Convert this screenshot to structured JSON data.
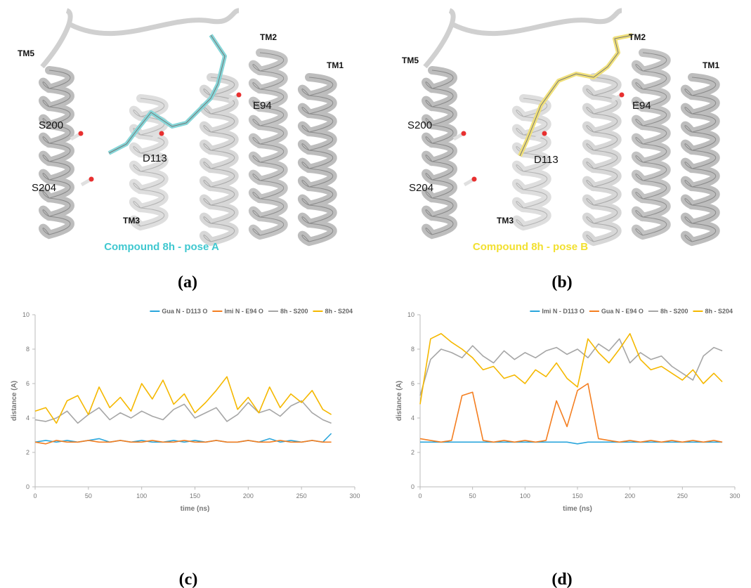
{
  "panels": [
    {
      "label": "(a)",
      "caption": "Compound 8h - pose A",
      "residues": [
        "TM5",
        "S200",
        "S204",
        "TM3",
        "D113",
        "TM2",
        "E94",
        "TM1"
      ]
    },
    {
      "label": "(b)",
      "caption": "Compound 8h - pose B",
      "residues": [
        "TM5",
        "S200",
        "S204",
        "TM3",
        "D113",
        "TM2",
        "E94",
        "TM1"
      ]
    }
  ],
  "chart_labels": [
    "(c)",
    "(d)"
  ],
  "chart_data": [
    {
      "type": "line",
      "xlabel": "time (ns)",
      "ylabel": "distance (A)",
      "legend": "top",
      "xlim": [
        0,
        300
      ],
      "xticks": [
        0,
        50,
        100,
        150,
        200,
        250,
        300
      ],
      "ylim": [
        0,
        10
      ],
      "yticks": [
        0,
        2,
        4,
        6,
        8,
        10
      ],
      "x": [
        0,
        10,
        20,
        30,
        40,
        50,
        60,
        70,
        80,
        90,
        100,
        110,
        120,
        130,
        140,
        150,
        160,
        170,
        180,
        190,
        200,
        210,
        220,
        230,
        240,
        250,
        260,
        270,
        278
      ],
      "series": [
        {
          "name": "Gua N - D113 O",
          "color": "#2aa6dc",
          "values": [
            2.6,
            2.7,
            2.6,
            2.7,
            2.6,
            2.7,
            2.8,
            2.6,
            2.7,
            2.6,
            2.7,
            2.6,
            2.6,
            2.7,
            2.6,
            2.7,
            2.6,
            2.7,
            2.6,
            2.6,
            2.7,
            2.6,
            2.8,
            2.6,
            2.7,
            2.6,
            2.7,
            2.6,
            3.1
          ]
        },
        {
          "name": "Imi N - E94 O",
          "color": "#f47e20",
          "values": [
            2.6,
            2.5,
            2.7,
            2.6,
            2.6,
            2.7,
            2.6,
            2.6,
            2.7,
            2.6,
            2.6,
            2.7,
            2.6,
            2.6,
            2.7,
            2.6,
            2.6,
            2.7,
            2.6,
            2.6,
            2.7,
            2.6,
            2.6,
            2.7,
            2.6,
            2.6,
            2.7,
            2.6,
            2.6
          ]
        },
        {
          "name": "8h - S200",
          "color": "#a6a6a6",
          "values": [
            3.9,
            3.8,
            4.0,
            4.4,
            3.7,
            4.2,
            4.6,
            3.9,
            4.3,
            4.0,
            4.4,
            4.1,
            3.9,
            4.5,
            4.8,
            4.0,
            4.3,
            4.6,
            3.8,
            4.2,
            4.9,
            4.3,
            4.5,
            4.1,
            4.7,
            5.0,
            4.3,
            3.9,
            3.7
          ]
        },
        {
          "name": "8h - S204",
          "color": "#f5b800",
          "values": [
            4.4,
            4.6,
            3.7,
            5.0,
            5.3,
            4.2,
            5.8,
            4.6,
            5.2,
            4.4,
            6.0,
            5.1,
            6.2,
            4.8,
            5.4,
            4.3,
            4.9,
            5.6,
            6.4,
            4.5,
            5.2,
            4.3,
            5.8,
            4.6,
            5.4,
            4.9,
            5.6,
            4.5,
            4.2
          ]
        }
      ]
    },
    {
      "type": "line",
      "xlabel": "time (ns)",
      "ylabel": "distance (A)",
      "legend": "top",
      "xlim": [
        0,
        300
      ],
      "xticks": [
        0,
        50,
        100,
        150,
        200,
        250,
        300
      ],
      "ylim": [
        0,
        10
      ],
      "yticks": [
        0,
        2,
        4,
        6,
        8,
        10
      ],
      "x": [
        0,
        10,
        20,
        30,
        40,
        50,
        60,
        70,
        80,
        90,
        100,
        110,
        120,
        130,
        140,
        150,
        160,
        170,
        180,
        190,
        200,
        210,
        220,
        230,
        240,
        250,
        260,
        270,
        280,
        288
      ],
      "series": [
        {
          "name": "Imi N - D113 O",
          "color": "#2aa6dc",
          "values": [
            2.6,
            2.6,
            2.6,
            2.6,
            2.6,
            2.6,
            2.6,
            2.6,
            2.6,
            2.6,
            2.6,
            2.6,
            2.6,
            2.6,
            2.6,
            2.5,
            2.6,
            2.6,
            2.6,
            2.6,
            2.6,
            2.6,
            2.6,
            2.6,
            2.6,
            2.6,
            2.6,
            2.6,
            2.6,
            2.6
          ]
        },
        {
          "name": "Gua N - E94 O",
          "color": "#f47e20",
          "values": [
            2.8,
            2.7,
            2.6,
            2.7,
            5.3,
            5.5,
            2.7,
            2.6,
            2.7,
            2.6,
            2.7,
            2.6,
            2.7,
            5.0,
            3.5,
            5.6,
            6.0,
            2.8,
            2.7,
            2.6,
            2.7,
            2.6,
            2.7,
            2.6,
            2.7,
            2.6,
            2.7,
            2.6,
            2.7,
            2.6
          ]
        },
        {
          "name": "8h - S200",
          "color": "#a6a6a6",
          "values": [
            5.3,
            7.4,
            8.0,
            7.8,
            7.5,
            8.2,
            7.6,
            7.2,
            7.9,
            7.4,
            7.8,
            7.5,
            7.9,
            8.1,
            7.7,
            8.0,
            7.5,
            8.3,
            7.9,
            8.6,
            7.2,
            7.8,
            7.4,
            7.6,
            7.0,
            6.6,
            6.2,
            7.6,
            8.1,
            7.9
          ]
        },
        {
          "name": "8h - S204",
          "color": "#f5b800",
          "values": [
            4.8,
            8.6,
            8.9,
            8.4,
            8.0,
            7.5,
            6.8,
            7.0,
            6.3,
            6.5,
            6.0,
            6.8,
            6.4,
            7.2,
            6.3,
            5.8,
            8.6,
            7.8,
            7.2,
            8.0,
            8.9,
            7.4,
            6.8,
            7.0,
            6.6,
            6.2,
            6.8,
            6.0,
            6.6,
            6.1
          ]
        }
      ]
    }
  ]
}
